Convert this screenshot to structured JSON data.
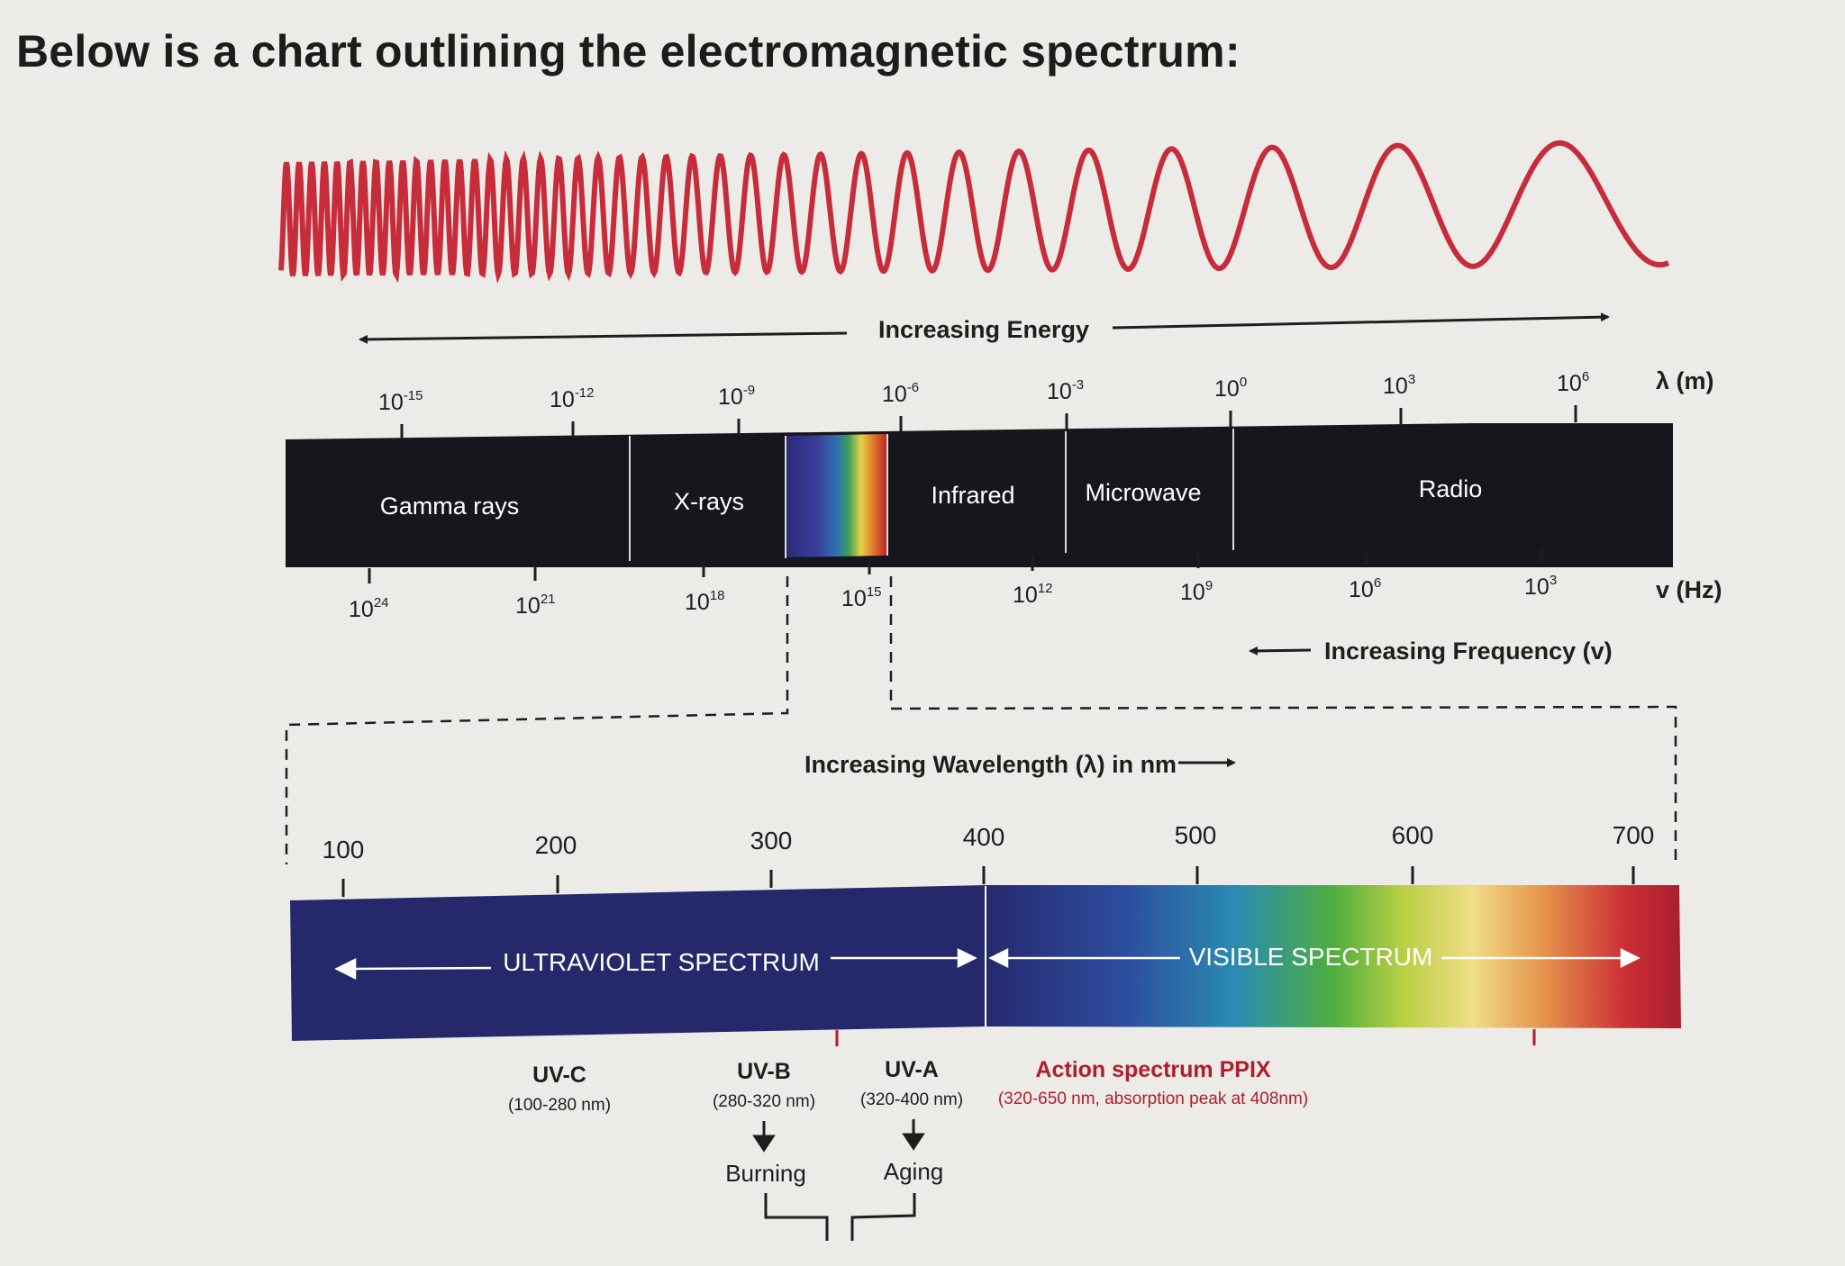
{
  "title": "Below is a chart outlining the electromagnetic spectrum:",
  "colors": {
    "wave": "#c72c3a",
    "band_bg": "#17161d",
    "uv_band": "#25286b",
    "ppix": "#b01e28"
  },
  "energy_label": "Increasing Energy",
  "frequency_label": "Increasing Frequency (v)",
  "wavelength_heading": "Increasing Wavelength (λ) in nm",
  "wavelength_axis": {
    "unit": "λ (m)",
    "ticks": [
      {
        "base": "10",
        "exp": "-15"
      },
      {
        "base": "10",
        "exp": "-12"
      },
      {
        "base": "10",
        "exp": "-9"
      },
      {
        "base": "10",
        "exp": "-6"
      },
      {
        "base": "10",
        "exp": "-3"
      },
      {
        "base": "10",
        "exp": "0"
      },
      {
        "base": "10",
        "exp": "3"
      },
      {
        "base": "10",
        "exp": "6"
      }
    ]
  },
  "frequency_axis": {
    "unit": "v (Hz)",
    "ticks": [
      {
        "base": "10",
        "exp": "24"
      },
      {
        "base": "10",
        "exp": "21"
      },
      {
        "base": "10",
        "exp": "18"
      },
      {
        "base": "10",
        "exp": "15"
      },
      {
        "base": "10",
        "exp": "12"
      },
      {
        "base": "10",
        "exp": "9"
      },
      {
        "base": "10",
        "exp": "6"
      },
      {
        "base": "10",
        "exp": "3"
      }
    ]
  },
  "bands": [
    "Gamma rays",
    "X-rays",
    "Infrared",
    "Microwave",
    "Radio"
  ],
  "nm_ticks": [
    "100",
    "200",
    "300",
    "400",
    "500",
    "600",
    "700"
  ],
  "uv_label": "ULTRAVIOLET SPECTRUM",
  "visible_label": "VISIBLE SPECTRUM",
  "uv_types": [
    {
      "name": "UV-C",
      "range": "(100-280 nm)"
    },
    {
      "name": "UV-B",
      "range": "(280-320 nm)",
      "effect": "Burning"
    },
    {
      "name": "UV-A",
      "range": "(320-400 nm)",
      "effect": "Aging"
    }
  ],
  "ppix": {
    "name": "Action spectrum PPIX",
    "range": "(320-650 nm, absorption peak at 408nm)"
  }
}
